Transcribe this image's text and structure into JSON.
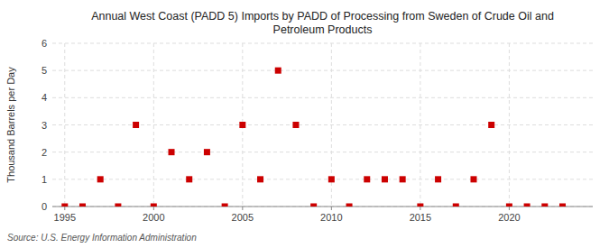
{
  "chart_data": {
    "type": "scatter",
    "title": "Annual West Coast (PADD 5) Imports by PADD of Processing from Sweden of Crude Oil and\nPetroleum Products",
    "y_label": "Thousand Barrels per Day",
    "source": "Source: U.S. Energy Information Administration",
    "x": [
      1995,
      1996,
      1997,
      1998,
      1999,
      2000,
      2001,
      2002,
      2003,
      2004,
      2005,
      2006,
      2007,
      2008,
      2009,
      2010,
      2011,
      2012,
      2013,
      2014,
      2015,
      2016,
      2017,
      2018,
      2019,
      2020,
      2021,
      2022,
      2023
    ],
    "values": [
      0,
      0,
      1,
      0,
      3,
      0,
      2,
      1,
      2,
      0,
      3,
      1,
      5,
      3,
      0,
      1,
      0,
      1,
      1,
      1,
      0,
      1,
      0,
      1,
      3,
      0,
      0,
      0,
      0
    ],
    "color": "#cc0000",
    "marker": "square",
    "xlim": [
      1994.3,
      2024.7
    ],
    "xticks": [
      1995,
      2000,
      2005,
      2010,
      2015,
      2020
    ],
    "ylim": [
      0,
      6
    ],
    "yticks": [
      0,
      1,
      2,
      3,
      4,
      5,
      6
    ],
    "grid": true
  }
}
